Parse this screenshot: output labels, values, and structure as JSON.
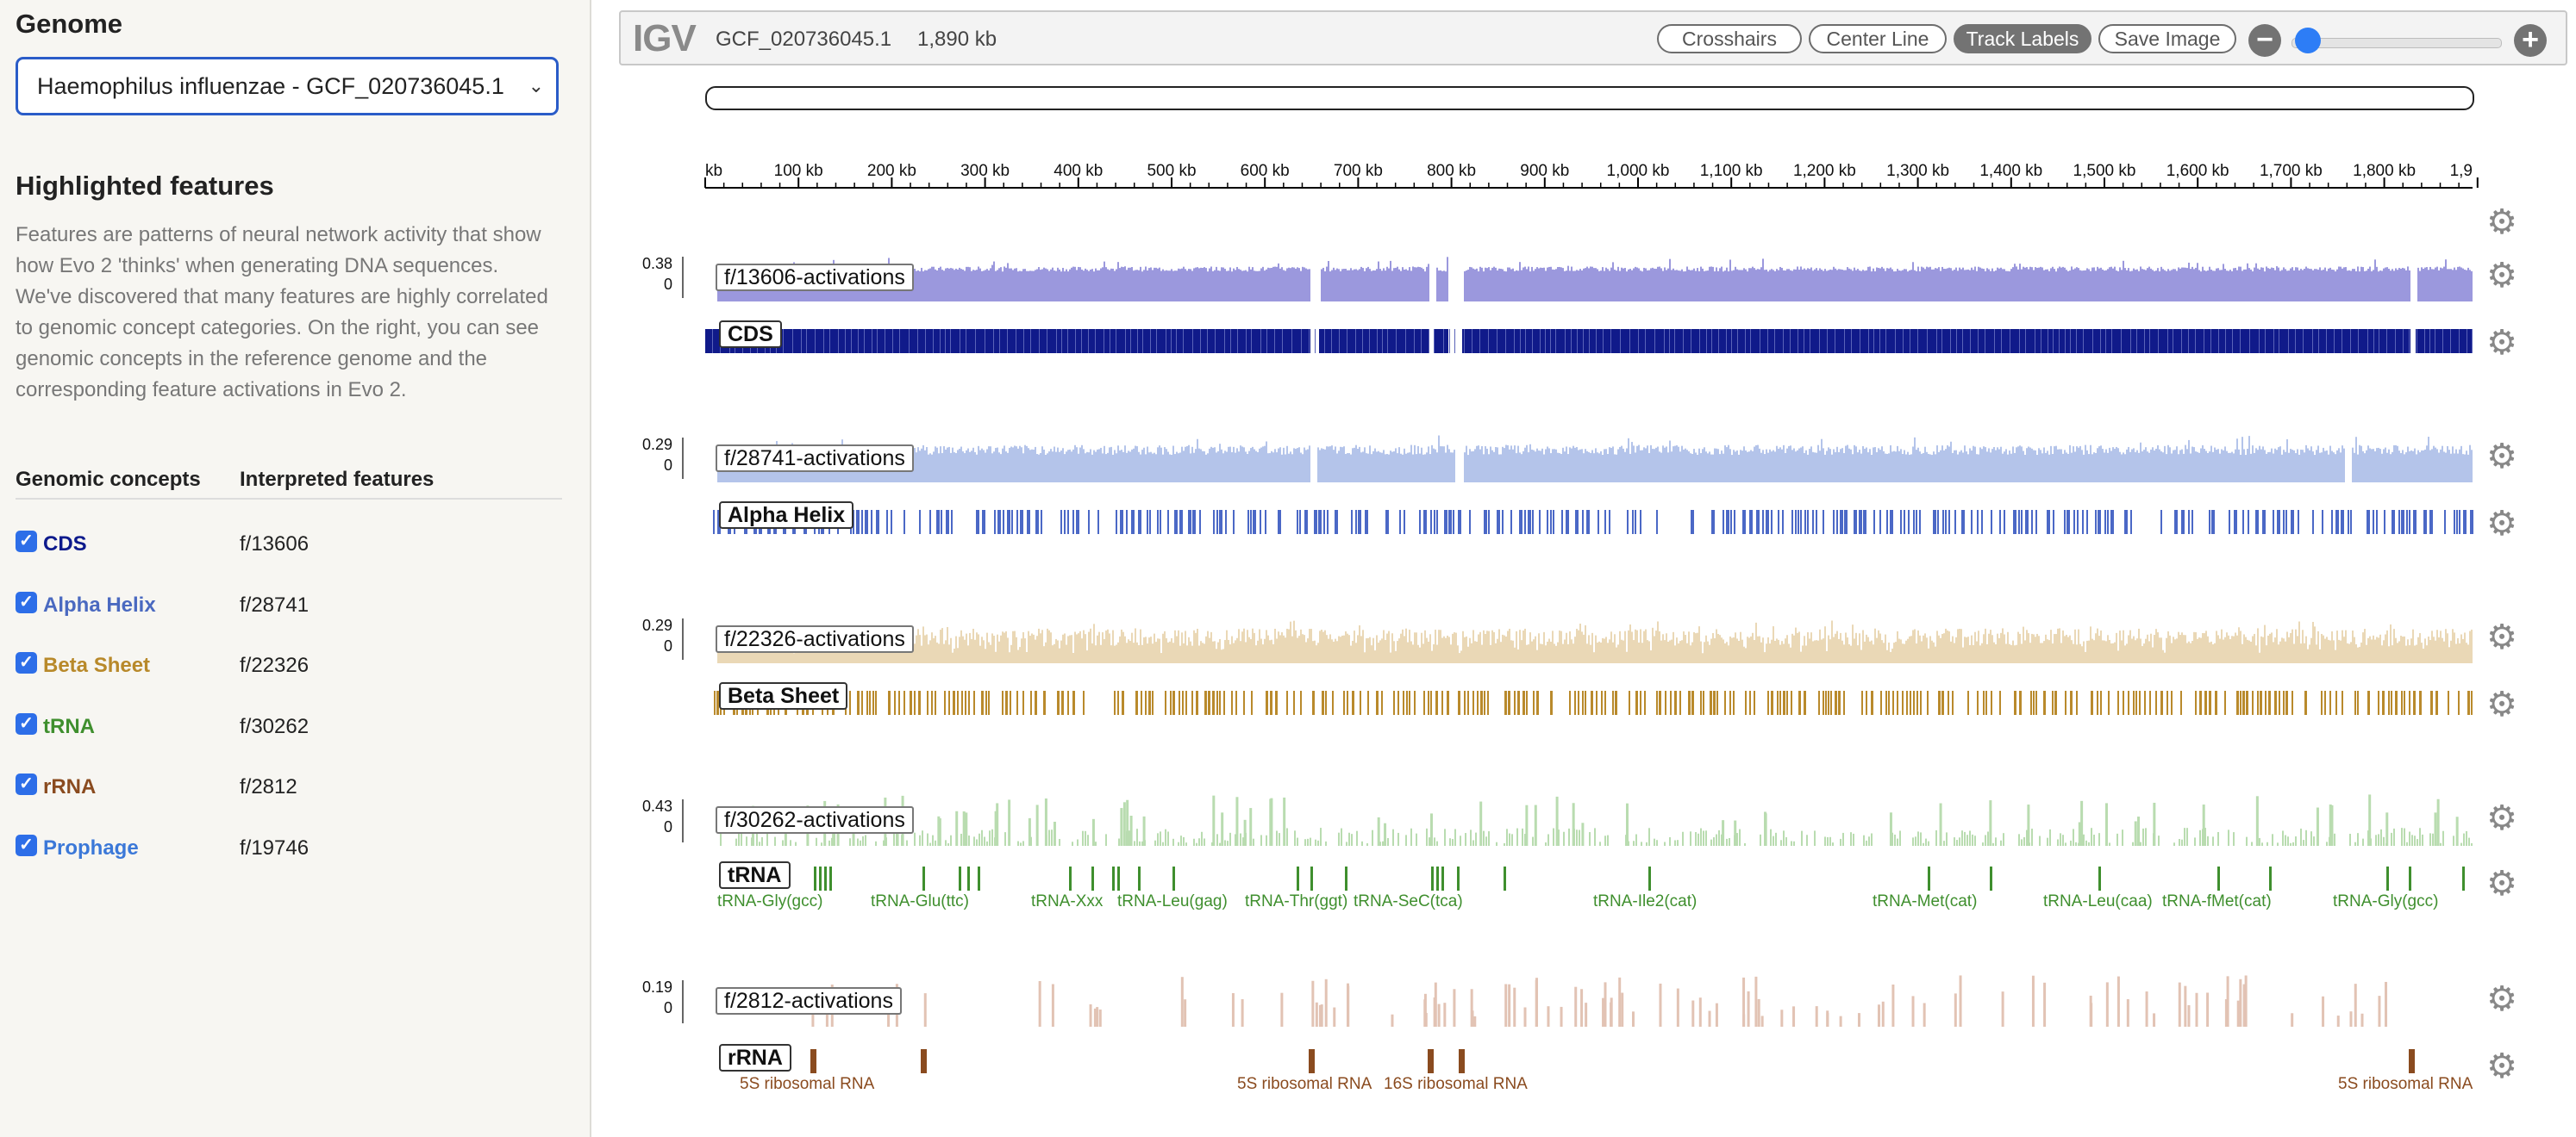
{
  "sidebar": {
    "genome_title": "Genome",
    "genome_select": "Haemophilus influenzae - GCF_020736045.1",
    "highlight_title": "Highlighted features",
    "description": "Features are patterns of neural network activity that show how Evo 2 'thinks' when generating DNA sequences. We've discovered that many features are highly correlated to genomic concept categories. On the right, you can see genomic concepts in the reference genome and the corresponding feature activations in Evo 2.",
    "col_concepts": "Genomic concepts",
    "col_features": "Interpreted features",
    "concepts": [
      {
        "name": "CDS",
        "feature": "f/13606",
        "color": "#0d1a8c",
        "checked": true
      },
      {
        "name": "Alpha Helix",
        "feature": "f/28741",
        "color": "#4a69c0",
        "checked": true
      },
      {
        "name": "Beta Sheet",
        "feature": "f/22326",
        "color": "#b8892a",
        "checked": true
      },
      {
        "name": "tRNA",
        "feature": "f/30262",
        "color": "#3f8f2e",
        "checked": true
      },
      {
        "name": "rRNA",
        "feature": "f/2812",
        "color": "#8a4b1f",
        "checked": true
      },
      {
        "name": "Prophage",
        "feature": "f/19746",
        "color": "#3b78d8",
        "checked": true
      }
    ]
  },
  "igv": {
    "logo": "IGV",
    "genome": "GCF_020736045.1",
    "size": "1,890 kb",
    "buttons": {
      "crosshairs": "Crosshairs",
      "center_line": "Center Line",
      "track_labels": "Track Labels",
      "save_image": "Save Image"
    },
    "track_labels_active": true,
    "zoom_level": 0,
    "ruler_ticks": [
      "kb",
      "100 kb",
      "200 kb",
      "300 kb",
      "400 kb",
      "500 kb",
      "600 kb",
      "700 kb",
      "800 kb",
      "900 kb",
      "1,000 kb",
      "1,100 kb",
      "1,200 kb",
      "1,300 kb",
      "1,400 kb",
      "1,500 kb",
      "1,600 kb",
      "1,700 kb",
      "1,800 kb",
      "1,9"
    ]
  },
  "tracks": [
    {
      "activation_label": "f/13606-activations",
      "scale_max": "0.38",
      "scale_min": "0",
      "signal_color": "#9b98dd",
      "annotation_label": "CDS",
      "annotation_color": "#101a8a"
    },
    {
      "activation_label": "f/28741-activations",
      "scale_max": "0.29",
      "scale_min": "0",
      "signal_color": "#b4c4ea",
      "annotation_label": "Alpha Helix",
      "annotation_color": "#4b68c6"
    },
    {
      "activation_label": "f/22326-activations",
      "scale_max": "0.29",
      "scale_min": "0",
      "signal_color": "#ead8b6",
      "annotation_label": "Beta Sheet",
      "annotation_color": "#b98a2c"
    },
    {
      "activation_label": "f/30262-activations",
      "scale_max": "0.43",
      "scale_min": "0",
      "signal_color": "#b9dcb0",
      "annotation_label": "tRNA",
      "annotation_color": "#3f8f2e",
      "features": [
        "tRNA-Gly(gcc)",
        "tRNA-Glu(ttc)",
        "tRNA-Xxx",
        "tRNA-Leu(gag)",
        "tRNA-Thr(ggt)",
        "tRNA-SeC(tca)",
        "tRNA-Ile2(cat)",
        "tRNA-Met(cat)",
        "tRNA-Leu(caa)",
        "tRNA-fMet(cat)",
        "tRNA-Gly(gcc)"
      ]
    },
    {
      "activation_label": "f/2812-activations",
      "scale_max": "0.19",
      "scale_min": "0",
      "signal_color": "#e2c3b4",
      "annotation_label": "rRNA",
      "annotation_color": "#8a4b1f",
      "features": [
        "5S ribosomal RNA",
        "5S ribosomal RNA",
        "16S ribosomal RNA",
        "5S ribosomal RNA"
      ]
    }
  ]
}
